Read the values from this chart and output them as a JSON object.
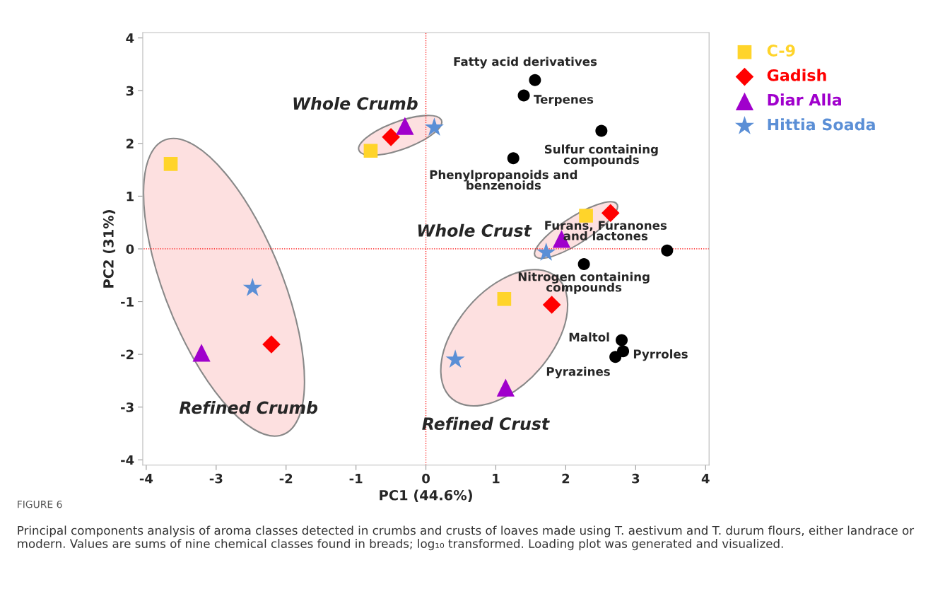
{
  "chart_data": {
    "type": "scatter",
    "xlabel": "PC1 (44.6%)",
    "ylabel": "PC2 (31%)",
    "xlim": [
      -4.05,
      4.05
    ],
    "ylim": [
      -4.1,
      4.1
    ],
    "xticks": [
      -4,
      -3,
      -2,
      -1,
      0,
      1,
      2,
      3,
      4
    ],
    "yticks": [
      -4,
      -3,
      -2,
      -1,
      0,
      1,
      2,
      3,
      4
    ],
    "grid": false,
    "legend": "right",
    "series": [
      {
        "name": "C-9",
        "color": "#ffd42a",
        "marker": "square",
        "x": [
          -0.79,
          -3.65,
          2.29,
          1.12
        ],
        "values": [
          1.86,
          1.61,
          0.63,
          -0.95
        ]
      },
      {
        "name": "Gadish",
        "color": "#ff0000",
        "marker": "diamond",
        "x": [
          -0.5,
          -2.21,
          2.64,
          1.8
        ],
        "values": [
          2.12,
          -1.81,
          0.68,
          -1.06
        ]
      },
      {
        "name": "Diar Alla",
        "color": "#a000cc",
        "marker": "triangle",
        "x": [
          -0.3,
          -3.21,
          1.94,
          1.14
        ],
        "values": [
          2.33,
          -1.97,
          0.19,
          -2.63
        ]
      },
      {
        "name": "Hittia Soada",
        "color": "#5b8fd6",
        "marker": "star",
        "x": [
          0.12,
          -2.48,
          1.72,
          0.42
        ],
        "values": [
          2.3,
          -0.74,
          -0.07,
          -2.1
        ]
      },
      {
        "color": "#000000",
        "marker": "circle",
        "x": [
          1.56,
          1.4,
          2.51,
          1.25,
          3.45,
          2.26,
          2.8,
          2.82,
          2.71
        ],
        "values": [
          3.2,
          2.91,
          2.24,
          1.72,
          -0.03,
          -0.29,
          -1.73,
          -1.94,
          -2.05
        ]
      }
    ],
    "ref_lines": [
      {
        "axis": "x",
        "value": 0,
        "color": "#ff0000",
        "line_style": "dotted"
      },
      {
        "axis": "y",
        "value": 0,
        "color": "#ff0000",
        "line_style": "dotted"
      }
    ],
    "annotations": [
      "Whole Crumb",
      "Refined Crumb",
      "Whole Crust",
      "Refined Crust",
      {
        "text": "Fatty acid derivatives",
        "x": 1.56,
        "y": 3.2
      },
      {
        "text": "Terpenes",
        "x": 1.4,
        "y": 2.91
      },
      {
        "text": "Sulfur containing\ncompounds",
        "x": 2.51,
        "y": 2.24
      },
      {
        "text": "Phenylpropanoids and\nbenzenoids",
        "x": 1.25,
        "y": 1.72
      },
      {
        "text": "Furans, Furanones\nand lactones",
        "x": 3.45,
        "y": -0.03
      },
      {
        "text": "Nitrogen containing\ncompounds",
        "x": 2.26,
        "y": -0.29
      },
      {
        "text": "Maltol",
        "x": 2.8,
        "y": -1.73
      },
      {
        "text": "Pyrroles",
        "x": 2.82,
        "y": -1.94
      },
      {
        "text": "Pyrazines",
        "x": 2.71,
        "y": -2.05
      },
      "FIGURE 6",
      "Principal components analysis of aroma classes detected in crumbs and crusts of loaves made using T. aestivum and T. durum flours, either landrace or modern. Values are sums of nine chemical classes found in breads; log₁₀ transformed. Loading plot was generated and visualized."
    ]
  }
}
